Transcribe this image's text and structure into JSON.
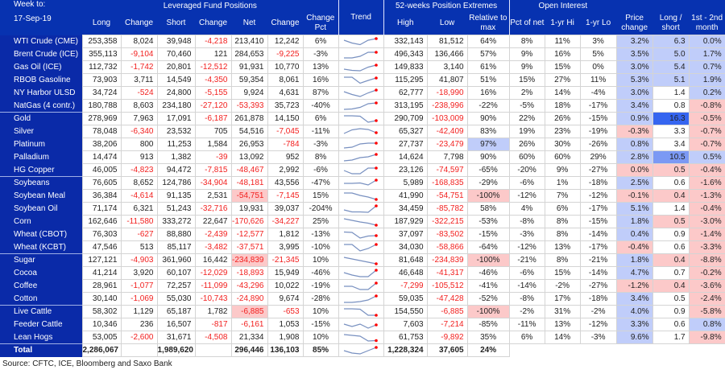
{
  "header": {
    "week_label": "Week to:",
    "date": "17-Sep-19",
    "group_lev": "Leveraged Fund Positions",
    "group_trend": "Trend",
    "group_ext": "52-weeks Position Extremes",
    "group_oi": "Open Interest",
    "cols": [
      "Long",
      "Change",
      "Short",
      "Change",
      "Net",
      "Change",
      "Change Pct",
      "High",
      "Low",
      "Relative to max",
      "Pct of net",
      "1-yr Hi",
      "1-yr Lo",
      "Price change",
      "Long / short",
      "1st - 2nd month"
    ]
  },
  "colors": {
    "header_bg": "#0732b0",
    "name_bg": "#0a2aa8",
    "negative": "#f2201f",
    "blue": "#c0cdfa",
    "pink": "#fcc9c9",
    "strong_blue": "#3565f0",
    "mid_blue": "#7b99f4",
    "trend_line": "#7890c0",
    "trend_dot": "#ff0000"
  },
  "rows": [
    {
      "name": "WTI Crude (CME)",
      "cells": [
        "253,358",
        "8,024",
        "39,948",
        "-4,218",
        "213,410",
        "12,242",
        "6%",
        "332,143",
        "81,512",
        "64%",
        "8%",
        "11%",
        "3%",
        "3.2%",
        "6.3",
        "0.0%"
      ],
      "hl": {
        "13": "blue",
        "14": "blue",
        "15": "blue"
      },
      "trend": [
        0.7,
        0.35,
        0.15,
        0.7,
        0.9
      ]
    },
    {
      "name": "Brent Crude (ICE)",
      "cells": [
        "355,113",
        "-9,104",
        "70,460",
        "121",
        "284,653",
        "-9,225",
        "-3%",
        "496,343",
        "136,466",
        "57%",
        "9%",
        "16%",
        "5%",
        "3.5%",
        "5.0",
        "1.7%"
      ],
      "hl": {
        "13": "blue",
        "14": "blue",
        "15": "blue"
      },
      "trend": [
        0.1,
        0.1,
        0.3,
        0.8,
        0.8
      ]
    },
    {
      "name": "Gas Oil (ICE)",
      "cells": [
        "112,732",
        "-1,742",
        "20,801",
        "-12,512",
        "91,931",
        "10,770",
        "13%",
        "149,833",
        "3,140",
        "61%",
        "9%",
        "15%",
        "0%",
        "3.0%",
        "5.4",
        "0.7%"
      ],
      "hl": {
        "13": "blue",
        "14": "blue",
        "15": "blue"
      },
      "trend": [
        0.3,
        0.15,
        0.1,
        0.55,
        0.8
      ]
    },
    {
      "name": "RBOB Gasoline",
      "cells": [
        "73,903",
        "3,711",
        "14,549",
        "-4,350",
        "59,354",
        "8,061",
        "16%",
        "115,295",
        "41,807",
        "51%",
        "15%",
        "27%",
        "11%",
        "5.3%",
        "5.1",
        "1.9%"
      ],
      "hl": {
        "13": "blue",
        "14": "blue",
        "15": "blue"
      },
      "trend": [
        0.9,
        0.9,
        0.15,
        0.5,
        0.8
      ]
    },
    {
      "name": "NY Harbor ULSD",
      "cells": [
        "34,724",
        "-524",
        "24,800",
        "-5,155",
        "9,924",
        "4,631",
        "87%",
        "62,777",
        "-18,990",
        "16%",
        "2%",
        "14%",
        "-4%",
        "3.0%",
        "1.4",
        "0.2%"
      ],
      "hl": {
        "13": "blue",
        "15": "blue"
      },
      "trend": [
        0.7,
        0.35,
        0.1,
        0.55,
        0.9
      ]
    },
    {
      "name": "NatGas (4 contr.)",
      "cells": [
        "180,788",
        "8,603",
        "234,180",
        "-27,120",
        "-53,393",
        "35,723",
        "-40%",
        "313,195",
        "-238,996",
        "-22%",
        "-5%",
        "18%",
        "-17%",
        "3.4%",
        "0.8",
        "-0.8%"
      ],
      "hl": {
        "13": "blue",
        "15": "pink"
      },
      "trend": [
        0.1,
        0.15,
        0.35,
        0.8,
        0.9
      ]
    },
    {
      "name": "Gold",
      "group_start": true,
      "cells": [
        "278,969",
        "7,963",
        "17,091",
        "-6,187",
        "261,878",
        "14,150",
        "6%",
        "290,709",
        "-103,009",
        "90%",
        "22%",
        "26%",
        "-15%",
        "0.9%",
        "16.3",
        "-0.5%"
      ],
      "hl": {
        "13": "blue",
        "14": "strong",
        "15": "pink"
      },
      "trend": [
        0.9,
        0.9,
        0.85,
        0.1,
        0.3
      ]
    },
    {
      "name": "Silver",
      "cells": [
        "78,048",
        "-6,340",
        "23,532",
        "705",
        "54,516",
        "-7,045",
        "-11%",
        "65,327",
        "-42,409",
        "83%",
        "19%",
        "23%",
        "-19%",
        "-0.3%",
        "3.3",
        "-0.7%"
      ],
      "hl": {
        "13": "pink",
        "15": "pink"
      },
      "trend": [
        0.3,
        0.75,
        0.9,
        0.8,
        0.4
      ]
    },
    {
      "name": "Platinum",
      "cells": [
        "38,206",
        "800",
        "11,253",
        "1,584",
        "26,953",
        "-784",
        "-3%",
        "27,737",
        "-23,479",
        "97%",
        "26%",
        "30%",
        "-26%",
        "0.8%",
        "3.4",
        "-0.7%"
      ],
      "hl": {
        "9": "blue",
        "13": "blue",
        "15": "pink"
      },
      "trend": [
        0.1,
        0.2,
        0.6,
        0.7,
        0.7
      ]
    },
    {
      "name": "Palladium",
      "cells": [
        "14,474",
        "913",
        "1,382",
        "-39",
        "13,092",
        "952",
        "8%",
        "14,624",
        "7,798",
        "90%",
        "60%",
        "60%",
        "29%",
        "2.8%",
        "10.5",
        "0.5%"
      ],
      "hl": {
        "13": "blue",
        "14": "mid",
        "15": "blue"
      },
      "trend": [
        0.1,
        0.2,
        0.5,
        0.6,
        0.9
      ]
    },
    {
      "name": "HG Copper",
      "cells": [
        "46,005",
        "-4,823",
        "94,472",
        "-7,815",
        "-48,467",
        "2,992",
        "-6%",
        "23,126",
        "-74,597",
        "-65%",
        "-20%",
        "9%",
        "-27%",
        "0.0%",
        "0.5",
        "-0.4%"
      ],
      "hl": {
        "13": "pink",
        "14": "pink",
        "15": "pink"
      },
      "trend": [
        0.5,
        0.1,
        0.1,
        0.8,
        0.8
      ]
    },
    {
      "name": "Soybeans",
      "group_start": true,
      "cells": [
        "76,605",
        "8,652",
        "124,786",
        "-34,904",
        "-48,181",
        "43,556",
        "-47%",
        "5,989",
        "-168,835",
        "-29%",
        "-6%",
        "1%",
        "-18%",
        "2.5%",
        "0.6",
        "-1.6%"
      ],
      "hl": {
        "13": "blue",
        "15": "pink"
      },
      "trend": [
        0.5,
        0.5,
        0.55,
        0.3,
        0.9
      ]
    },
    {
      "name": "Soybean Meal",
      "cells": [
        "36,384",
        "-4,614",
        "91,135",
        "2,531",
        "-54,751",
        "-7,145",
        "15%",
        "41,990",
        "-54,751",
        "-100%",
        "-12%",
        "7%",
        "-12%",
        "-0.1%",
        "0.4",
        "-1.3%"
      ],
      "hl": {
        "4": "pink",
        "9": "pink",
        "13": "pink",
        "14": "pink",
        "15": "pink"
      },
      "trend": [
        0.9,
        0.9,
        0.6,
        0.4,
        0.1
      ]
    },
    {
      "name": "Soybean Oil",
      "cells": [
        "71,174",
        "6,321",
        "51,243",
        "-32,716",
        "19,931",
        "39,037",
        "-204%",
        "34,459",
        "-85,782",
        "58%",
        "4%",
        "6%",
        "-17%",
        "5.1%",
        "1.4",
        "-0.4%"
      ],
      "hl": {
        "13": "blue",
        "15": "pink"
      },
      "trend": [
        0.4,
        0.15,
        0.15,
        0.1,
        0.9
      ]
    },
    {
      "name": "Corn",
      "cells": [
        "162,646",
        "-11,580",
        "333,272",
        "22,647",
        "-170,626",
        "-34,227",
        "25%",
        "187,929",
        "-322,215",
        "-53%",
        "-8%",
        "8%",
        "-15%",
        "1.8%",
        "0.5",
        "-3.0%"
      ],
      "hl": {
        "13": "blue",
        "14": "pink",
        "15": "pink"
      },
      "trend": [
        0.9,
        0.7,
        0.5,
        0.35,
        0.1
      ]
    },
    {
      "name": "Wheat (CBOT)",
      "cells": [
        "76,303",
        "-627",
        "88,880",
        "-2,439",
        "-12,577",
        "1,812",
        "-13%",
        "37,097",
        "-83,502",
        "-15%",
        "-3%",
        "8%",
        "-14%",
        "0.4%",
        "0.9",
        "-1.4%"
      ],
      "hl": {
        "13": "blue",
        "15": "pink"
      },
      "trend": [
        0.85,
        0.8,
        0.1,
        0.35,
        0.4
      ]
    },
    {
      "name": "Wheat (KCBT)",
      "cells": [
        "47,546",
        "513",
        "85,117",
        "-3,482",
        "-37,571",
        "3,995",
        "-10%",
        "34,030",
        "-58,866",
        "-64%",
        "-12%",
        "13%",
        "-17%",
        "-0.4%",
        "0.6",
        "-3.3%"
      ],
      "hl": {
        "13": "pink",
        "15": "pink"
      },
      "trend": [
        0.9,
        0.9,
        0.1,
        0.4,
        0.9
      ]
    },
    {
      "name": "Sugar",
      "group_start": true,
      "cells": [
        "127,121",
        "-4,903",
        "361,960",
        "16,442",
        "-234,839",
        "-21,345",
        "10%",
        "81,648",
        "-234,839",
        "-100%",
        "-21%",
        "8%",
        "-21%",
        "1.8%",
        "0.4",
        "-8.8%"
      ],
      "hl": {
        "4": "pink",
        "9": "pink",
        "13": "blue",
        "14": "pink",
        "15": "pink"
      },
      "trend": [
        0.9,
        0.7,
        0.5,
        0.3,
        0.1
      ]
    },
    {
      "name": "Cocoa",
      "cells": [
        "41,214",
        "3,920",
        "60,107",
        "-12,029",
        "-18,893",
        "15,949",
        "-46%",
        "46,648",
        "-41,317",
        "-46%",
        "-6%",
        "15%",
        "-14%",
        "4.7%",
        "0.7",
        "-0.2%"
      ],
      "hl": {
        "13": "blue",
        "15": "pink"
      },
      "trend": [
        0.6,
        0.3,
        0.1,
        0.1,
        0.9
      ]
    },
    {
      "name": "Coffee",
      "cells": [
        "28,961",
        "-1,077",
        "72,257",
        "-11,099",
        "-43,296",
        "10,022",
        "-19%",
        "-7,299",
        "-105,512",
        "-41%",
        "-14%",
        "-2%",
        "-27%",
        "-1.2%",
        "0.4",
        "-3.6%"
      ],
      "hl": {
        "13": "pink",
        "14": "pink",
        "15": "pink"
      },
      "trend": [
        0.5,
        0.5,
        0.1,
        0.1,
        0.9
      ]
    },
    {
      "name": "Cotton",
      "cells": [
        "30,140",
        "-1,069",
        "55,030",
        "-10,743",
        "-24,890",
        "9,674",
        "-28%",
        "59,035",
        "-47,428",
        "-52%",
        "-8%",
        "17%",
        "-18%",
        "3.4%",
        "0.5",
        "-2.4%"
      ],
      "hl": {
        "13": "blue",
        "15": "pink"
      },
      "trend": [
        0.1,
        0.1,
        0.2,
        0.4,
        0.9
      ]
    },
    {
      "name": "Live Cattle",
      "group_start": true,
      "cells": [
        "58,302",
        "1,129",
        "65,187",
        "1,782",
        "-6,885",
        "-653",
        "10%",
        "154,550",
        "-6,885",
        "-100%",
        "-2%",
        "31%",
        "-2%",
        "4.0%",
        "0.9",
        "-5.8%"
      ],
      "hl": {
        "4": "pink",
        "9": "pink",
        "13": "blue",
        "15": "pink"
      },
      "trend": [
        0.9,
        0.9,
        0.85,
        0.1,
        0.1
      ]
    },
    {
      "name": "Feeder Cattle",
      "cells": [
        "10,346",
        "236",
        "16,507",
        "-817",
        "-6,161",
        "1,053",
        "-15%",
        "7,603",
        "-7,214",
        "-85%",
        "-11%",
        "13%",
        "-12%",
        "3.3%",
        "0.6",
        "0.8%"
      ],
      "hl": {
        "13": "blue",
        "15": "blue"
      },
      "trend": [
        0.6,
        0.3,
        0.6,
        0.1,
        0.5
      ]
    },
    {
      "name": "Lean Hogs",
      "cells": [
        "53,005",
        "-2,600",
        "31,671",
        "-4,508",
        "21,334",
        "1,908",
        "10%",
        "61,753",
        "-9,892",
        "35%",
        "6%",
        "14%",
        "-3%",
        "9.6%",
        "1.7",
        "-9.8%"
      ],
      "hl": {
        "13": "blue",
        "15": "pink"
      },
      "trend": [
        0.9,
        0.8,
        0.7,
        0.1,
        0.15
      ]
    }
  ],
  "total": {
    "name": "Total",
    "cells": [
      "2,286,067",
      "",
      "1,989,620",
      "",
      "296,446",
      "136,103",
      "85%",
      "1,228,324",
      "37,605",
      "24%"
    ],
    "trend": [
      0.5,
      0.2,
      0.1,
      0.5,
      0.9
    ]
  },
  "source": "Source: CFTC, ICE, Bloomberg and Saxo Bank"
}
